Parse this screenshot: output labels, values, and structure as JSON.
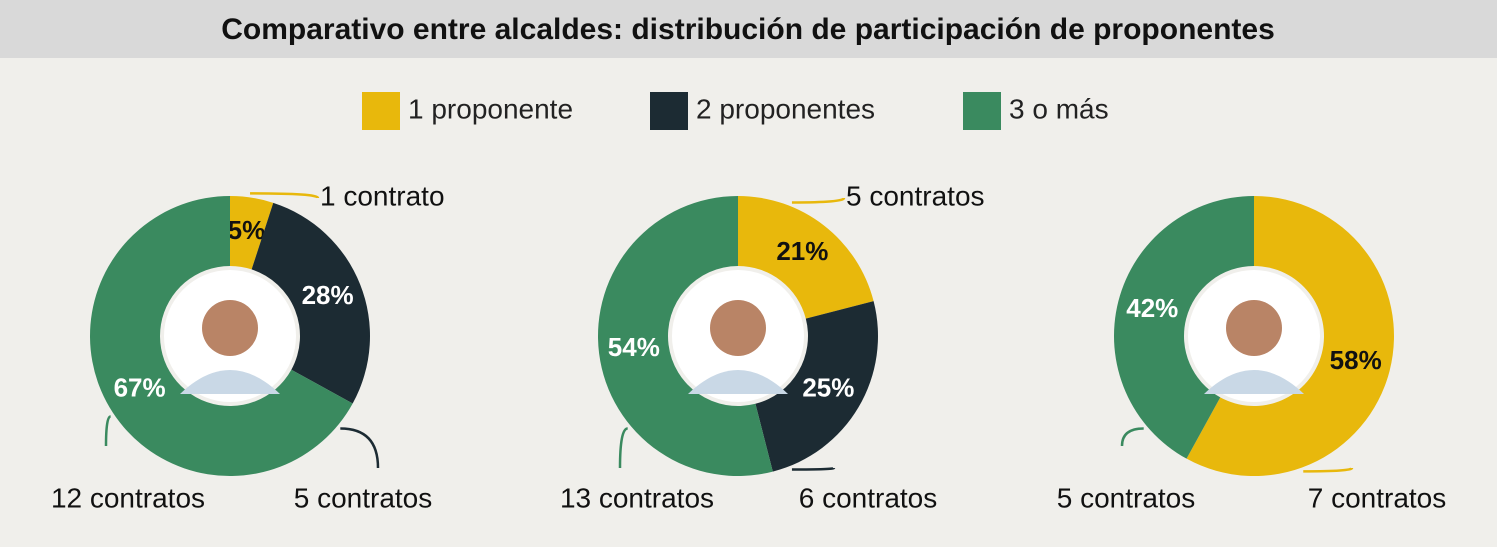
{
  "title": "Comparativo entre alcaldes: distribución de participación de proponentes",
  "legend": [
    {
      "name": "1 proponente",
      "color": "#e8b80c"
    },
    {
      "name": "2 proponentes",
      "color": "#1c2b33"
    },
    {
      "name": "3 o más",
      "color": "#3a8a5f"
    }
  ],
  "chart_data": [
    {
      "type": "pie",
      "values": [
        5,
        28,
        67
      ],
      "value_labels": [
        "5%",
        "28%",
        "67%"
      ],
      "annotations": [
        "1 contrato",
        "5 contratos",
        "12 contratos"
      ]
    },
    {
      "type": "pie",
      "values": [
        21,
        25,
        54
      ],
      "value_labels": [
        "21%",
        "25%",
        "54%"
      ],
      "annotations": [
        "5 contratos",
        "6 contratos",
        "13 contratos"
      ]
    },
    {
      "type": "pie",
      "values": [
        58,
        null,
        42
      ],
      "value_labels": [
        "58%",
        null,
        "42%"
      ],
      "annotations": [
        "7 contratos",
        null,
        "5 contratos"
      ]
    }
  ]
}
